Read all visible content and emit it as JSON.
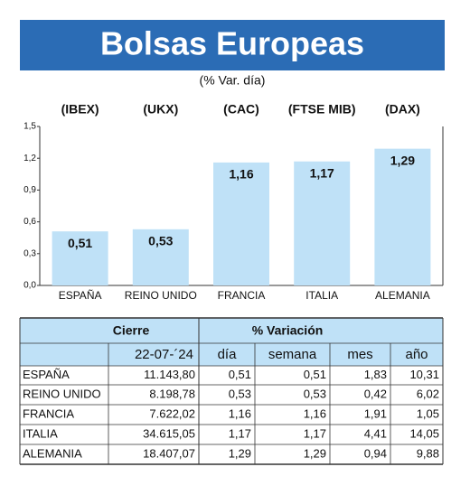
{
  "chart_data": {
    "type": "bar",
    "title": "Bolsas Europeas",
    "subtitle": "(% Var. día)",
    "index_labels": [
      "(IBEX)",
      "(UKX)",
      "(CAC)",
      "(FTSE MIB)",
      "(DAX)"
    ],
    "categories": [
      "ESPAÑA",
      "REINO UNIDO",
      "FRANCIA",
      "ITALIA",
      "ALEMANIA"
    ],
    "values": [
      0.51,
      0.53,
      1.16,
      1.17,
      1.29
    ],
    "value_labels": [
      "0,51",
      "0,53",
      "1,16",
      "1,17",
      "1,29"
    ],
    "color": "#bfe1f7",
    "ylim": [
      0,
      1.5
    ],
    "yticks": [
      {
        "value": 0,
        "label": "0,0"
      },
      {
        "value": 0.3,
        "label": "0,3"
      },
      {
        "value": 0.6,
        "label": "0,6"
      },
      {
        "value": 0.9,
        "label": "0,9"
      },
      {
        "value": 1.2,
        "label": "1,2"
      },
      {
        "value": 1.5,
        "label": "1,5"
      }
    ]
  },
  "table": {
    "header": [
      "Cierre",
      "% Variación"
    ],
    "subheader": [
      "22-07-´24",
      "día",
      "semana",
      "mes",
      "año"
    ],
    "rows": [
      [
        "ESPAÑA",
        "11.143,80",
        "0,51",
        "0,51",
        "1,83",
        "10,31"
      ],
      [
        "REINO UNIDO",
        "8.198,78",
        "0,53",
        "0,53",
        "0,42",
        "6,02"
      ],
      [
        "FRANCIA",
        "7.622,02",
        "1,16",
        "1,16",
        "1,91",
        "1,05"
      ],
      [
        "ITALIA",
        "34.615,05",
        "1,17",
        "1,17",
        "4,41",
        "14,05"
      ],
      [
        "ALEMANIA",
        "18.407,07",
        "1,29",
        "1,29",
        "0,94",
        "9,88"
      ]
    ]
  }
}
